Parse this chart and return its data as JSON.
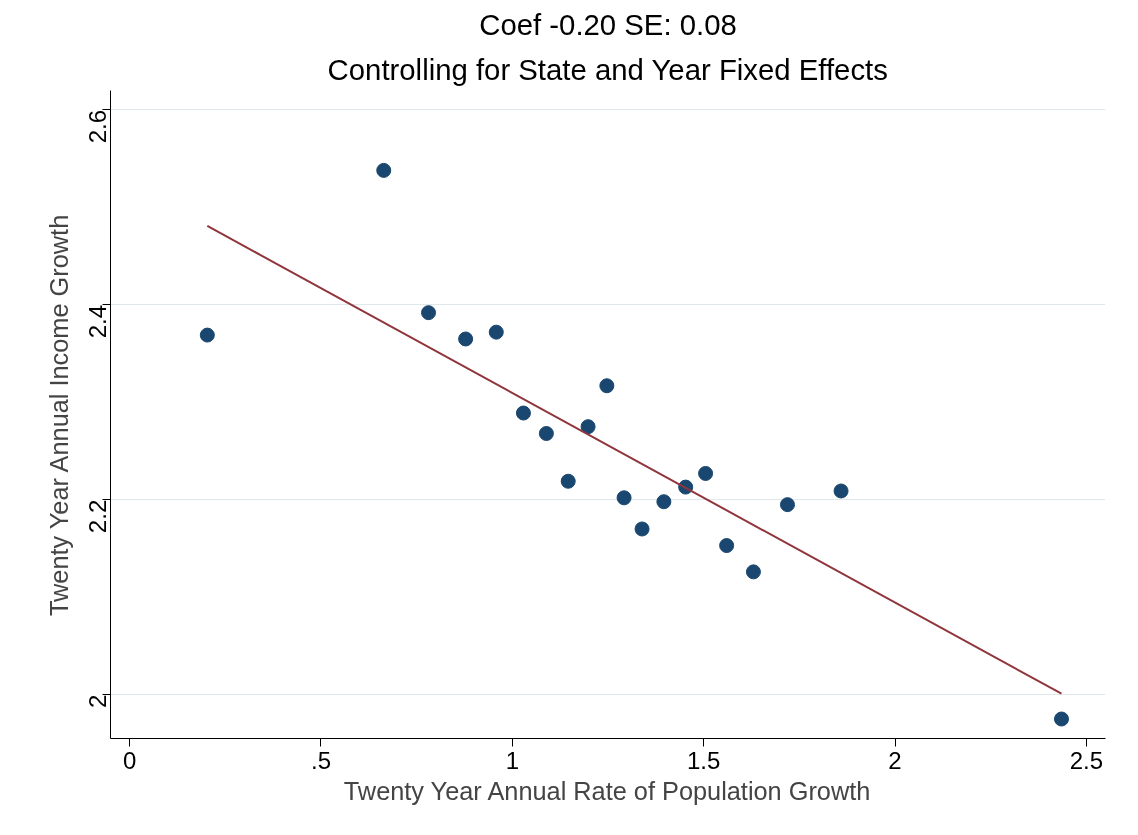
{
  "chart_data": {
    "type": "scatter",
    "title": "Coef -0.20 SE: 0.08",
    "subtitle": "Controlling for State and Year Fixed Effects",
    "xlabel": "Twenty Year Annual Rate of Population Growth",
    "ylabel": "Twenty Year Annual Income Growth",
    "xlim": [
      -0.05,
      2.55
    ],
    "ylim": [
      1.955,
      2.62
    ],
    "xticks": [
      0,
      {
        "value": 0.5,
        "label": ".5"
      },
      1,
      1.5,
      2,
      2.5
    ],
    "yticks": [
      2,
      2.2,
      2.4,
      2.6
    ],
    "grid": "y",
    "series": [
      {
        "marker": "circle",
        "color": "#1a476f",
        "x": [
          0.203,
          0.664,
          0.781,
          0.878,
          0.958,
          1.029,
          1.089,
          1.146,
          1.198,
          1.247,
          1.292,
          1.339,
          1.396,
          1.453,
          1.505,
          1.56,
          1.63,
          1.719,
          1.859,
          2.435
        ],
        "values": [
          2.369,
          2.538,
          2.392,
          2.365,
          2.372,
          2.289,
          2.268,
          2.219,
          2.275,
          2.317,
          2.202,
          2.17,
          2.198,
          2.213,
          2.227,
          2.153,
          2.126,
          2.195,
          2.209,
          1.975
        ]
      },
      {
        "type": "line",
        "marker": "none",
        "color": "#90353b",
        "x": [
          0.203,
          2.435
        ],
        "values": [
          2.481,
          2.001
        ]
      }
    ]
  }
}
